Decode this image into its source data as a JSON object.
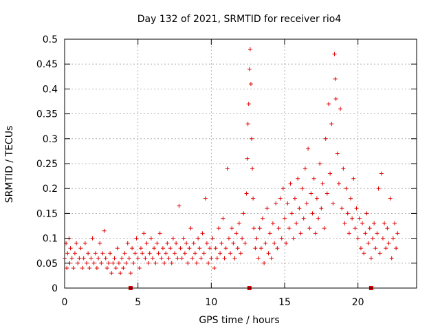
{
  "chart_data": {
    "type": "scatter",
    "title": "Day 132 of 2021, SRMTID for receiver rio4",
    "xlabel": "GPS time / hours",
    "ylabel": "SRMTID / TECUs",
    "xlim": [
      0,
      24
    ],
    "ylim": [
      0,
      0.5
    ],
    "xticks": [
      0,
      5,
      10,
      15,
      20
    ],
    "xtick_labels": [
      "0",
      "5",
      "10",
      "15",
      "20"
    ],
    "yticks": [
      0,
      0.05,
      0.1,
      0.15,
      0.2,
      0.25,
      0.3,
      0.35,
      0.4,
      0.45,
      0.5
    ],
    "ytick_labels": [
      "0",
      "0.05",
      "0.1",
      "0.15",
      "0.2",
      "0.25",
      "0.3",
      "0.35",
      "0.4",
      "0.45",
      "0.5"
    ],
    "grid": true,
    "marker": "plus",
    "color": "#e00000",
    "baseline_markers_x": [
      4.5,
      12.6,
      20.9
    ],
    "series": [
      {
        "name": "SRMTID",
        "points": [
          [
            0.0,
            0.06
          ],
          [
            0.1,
            0.09
          ],
          [
            0.15,
            0.04
          ],
          [
            0.2,
            0.07
          ],
          [
            0.3,
            0.1
          ],
          [
            0.35,
            0.05
          ],
          [
            0.4,
            0.08
          ],
          [
            0.5,
            0.06
          ],
          [
            0.6,
            0.04
          ],
          [
            0.7,
            0.07
          ],
          [
            0.8,
            0.09
          ],
          [
            0.9,
            0.05
          ],
          [
            1.0,
            0.06
          ],
          [
            1.1,
            0.08
          ],
          [
            1.2,
            0.04
          ],
          [
            1.3,
            0.06
          ],
          [
            1.4,
            0.09
          ],
          [
            1.5,
            0.05
          ],
          [
            1.6,
            0.07
          ],
          [
            1.7,
            0.04
          ],
          [
            1.8,
            0.06
          ],
          [
            1.9,
            0.1
          ],
          [
            2.0,
            0.05
          ],
          [
            2.1,
            0.07
          ],
          [
            2.2,
            0.04
          ],
          [
            2.3,
            0.06
          ],
          [
            2.4,
            0.09
          ],
          [
            2.5,
            0.05
          ],
          [
            2.6,
            0.07
          ],
          [
            2.7,
            0.115
          ],
          [
            2.8,
            0.06
          ],
          [
            2.9,
            0.04
          ],
          [
            3.0,
            0.05
          ],
          [
            3.1,
            0.07
          ],
          [
            3.2,
            0.03
          ],
          [
            3.3,
            0.05
          ],
          [
            3.4,
            0.06
          ],
          [
            3.5,
            0.04
          ],
          [
            3.6,
            0.08
          ],
          [
            3.7,
            0.05
          ],
          [
            3.8,
            0.03
          ],
          [
            3.9,
            0.06
          ],
          [
            4.0,
            0.04
          ],
          [
            4.1,
            0.07
          ],
          [
            4.2,
            0.05
          ],
          [
            4.3,
            0.09
          ],
          [
            4.4,
            0.06
          ],
          [
            4.5,
            0.03
          ],
          [
            4.6,
            0.08
          ],
          [
            4.7,
            0.05
          ],
          [
            4.8,
            0.07
          ],
          [
            4.9,
            0.1
          ],
          [
            5.0,
            0.06
          ],
          [
            5.1,
            0.04
          ],
          [
            5.2,
            0.08
          ],
          [
            5.3,
            0.07
          ],
          [
            5.4,
            0.11
          ],
          [
            5.5,
            0.06
          ],
          [
            5.6,
            0.09
          ],
          [
            5.7,
            0.05
          ],
          [
            5.8,
            0.07
          ],
          [
            5.9,
            0.1
          ],
          [
            6.0,
            0.06
          ],
          [
            6.1,
            0.08
          ],
          [
            6.2,
            0.05
          ],
          [
            6.3,
            0.09
          ],
          [
            6.4,
            0.07
          ],
          [
            6.5,
            0.11
          ],
          [
            6.6,
            0.06
          ],
          [
            6.7,
            0.08
          ],
          [
            6.8,
            0.05
          ],
          [
            6.9,
            0.07
          ],
          [
            7.0,
            0.09
          ],
          [
            7.1,
            0.06
          ],
          [
            7.2,
            0.08
          ],
          [
            7.3,
            0.05
          ],
          [
            7.4,
            0.1
          ],
          [
            7.5,
            0.07
          ],
          [
            7.6,
            0.09
          ],
          [
            7.7,
            0.06
          ],
          [
            7.8,
            0.165
          ],
          [
            7.9,
            0.08
          ],
          [
            8.0,
            0.06
          ],
          [
            8.1,
            0.1
          ],
          [
            8.2,
            0.07
          ],
          [
            8.3,
            0.09
          ],
          [
            8.4,
            0.05
          ],
          [
            8.5,
            0.08
          ],
          [
            8.6,
            0.12
          ],
          [
            8.7,
            0.06
          ],
          [
            8.8,
            0.09
          ],
          [
            8.9,
            0.07
          ],
          [
            9.0,
            0.05
          ],
          [
            9.1,
            0.1
          ],
          [
            9.2,
            0.08
          ],
          [
            9.3,
            0.06
          ],
          [
            9.4,
            0.11
          ],
          [
            9.5,
            0.07
          ],
          [
            9.6,
            0.18
          ],
          [
            9.7,
            0.09
          ],
          [
            9.8,
            0.05
          ],
          [
            9.9,
            0.08
          ],
          [
            10.0,
            0.06
          ],
          [
            10.1,
            0.1
          ],
          [
            10.2,
            0.04
          ],
          [
            10.3,
            0.08
          ],
          [
            10.4,
            0.06
          ],
          [
            10.5,
            0.12
          ],
          [
            10.6,
            0.07
          ],
          [
            10.7,
            0.09
          ],
          [
            10.8,
            0.14
          ],
          [
            10.9,
            0.06
          ],
          [
            11.0,
            0.08
          ],
          [
            11.1,
            0.24
          ],
          [
            11.2,
            0.1
          ],
          [
            11.3,
            0.07
          ],
          [
            11.4,
            0.12
          ],
          [
            11.5,
            0.09
          ],
          [
            11.6,
            0.06
          ],
          [
            11.7,
            0.11
          ],
          [
            11.8,
            0.08
          ],
          [
            11.9,
            0.13
          ],
          [
            12.0,
            0.07
          ],
          [
            12.1,
            0.1
          ],
          [
            12.2,
            0.15
          ],
          [
            12.3,
            0.09
          ],
          [
            12.4,
            0.19
          ],
          [
            12.45,
            0.26
          ],
          [
            12.5,
            0.33
          ],
          [
            12.55,
            0.37
          ],
          [
            12.6,
            0.44
          ],
          [
            12.65,
            0.48
          ],
          [
            12.7,
            0.41
          ],
          [
            12.75,
            0.3
          ],
          [
            12.8,
            0.24
          ],
          [
            12.85,
            0.18
          ],
          [
            12.9,
            0.12
          ],
          [
            13.0,
            0.08
          ],
          [
            13.1,
            0.1
          ],
          [
            13.2,
            0.06
          ],
          [
            13.3,
            0.12
          ],
          [
            13.4,
            0.08
          ],
          [
            13.5,
            0.14
          ],
          [
            13.6,
            0.05
          ],
          [
            13.7,
            0.09
          ],
          [
            13.8,
            0.16
          ],
          [
            13.9,
            0.07
          ],
          [
            14.0,
            0.11
          ],
          [
            14.1,
            0.06
          ],
          [
            14.2,
            0.13
          ],
          [
            14.3,
            0.09
          ],
          [
            14.4,
            0.17
          ],
          [
            14.5,
            0.08
          ],
          [
            14.6,
            0.12
          ],
          [
            14.7,
            0.18
          ],
          [
            14.8,
            0.1
          ],
          [
            14.9,
            0.2
          ],
          [
            15.0,
            0.14
          ],
          [
            15.1,
            0.09
          ],
          [
            15.2,
            0.17
          ],
          [
            15.3,
            0.12
          ],
          [
            15.4,
            0.21
          ],
          [
            15.5,
            0.15
          ],
          [
            15.6,
            0.1
          ],
          [
            15.7,
            0.18
          ],
          [
            15.8,
            0.13
          ],
          [
            15.9,
            0.22
          ],
          [
            16.0,
            0.16
          ],
          [
            16.1,
            0.11
          ],
          [
            16.2,
            0.2
          ],
          [
            16.3,
            0.14
          ],
          [
            16.4,
            0.24
          ],
          [
            16.5,
            0.17
          ],
          [
            16.6,
            0.28
          ],
          [
            16.7,
            0.12
          ],
          [
            16.8,
            0.19
          ],
          [
            16.9,
            0.15
          ],
          [
            17.0,
            0.22
          ],
          [
            17.1,
            0.11
          ],
          [
            17.2,
            0.18
          ],
          [
            17.3,
            0.14
          ],
          [
            17.4,
            0.25
          ],
          [
            17.5,
            0.16
          ],
          [
            17.6,
            0.21
          ],
          [
            17.7,
            0.12
          ],
          [
            17.8,
            0.3
          ],
          [
            17.9,
            0.19
          ],
          [
            18.0,
            0.37
          ],
          [
            18.1,
            0.23
          ],
          [
            18.2,
            0.33
          ],
          [
            18.3,
            0.17
          ],
          [
            18.4,
            0.47
          ],
          [
            18.45,
            0.42
          ],
          [
            18.5,
            0.38
          ],
          [
            18.6,
            0.27
          ],
          [
            18.7,
            0.21
          ],
          [
            18.8,
            0.36
          ],
          [
            18.9,
            0.16
          ],
          [
            19.0,
            0.24
          ],
          [
            19.1,
            0.13
          ],
          [
            19.2,
            0.2
          ],
          [
            19.3,
            0.15
          ],
          [
            19.4,
            0.11
          ],
          [
            19.5,
            0.18
          ],
          [
            19.6,
            0.14
          ],
          [
            19.7,
            0.22
          ],
          [
            19.8,
            0.12
          ],
          [
            19.9,
            0.16
          ],
          [
            20.0,
            0.1
          ],
          [
            20.1,
            0.14
          ],
          [
            20.2,
            0.08
          ],
          [
            20.3,
            0.13
          ],
          [
            20.4,
            0.07
          ],
          [
            20.5,
            0.11
          ],
          [
            20.6,
            0.15
          ],
          [
            20.7,
            0.09
          ],
          [
            20.8,
            0.12
          ],
          [
            20.9,
            0.06
          ],
          [
            21.0,
            0.1
          ],
          [
            21.1,
            0.13
          ],
          [
            21.2,
            0.08
          ],
          [
            21.3,
            0.11
          ],
          [
            21.4,
            0.2
          ],
          [
            21.5,
            0.07
          ],
          [
            21.6,
            0.23
          ],
          [
            21.7,
            0.1
          ],
          [
            21.8,
            0.13
          ],
          [
            21.9,
            0.08
          ],
          [
            22.0,
            0.12
          ],
          [
            22.1,
            0.09
          ],
          [
            22.2,
            0.18
          ],
          [
            22.3,
            0.06
          ],
          [
            22.4,
            0.1
          ],
          [
            22.5,
            0.13
          ],
          [
            22.6,
            0.08
          ],
          [
            22.7,
            0.11
          ]
        ]
      }
    ]
  }
}
